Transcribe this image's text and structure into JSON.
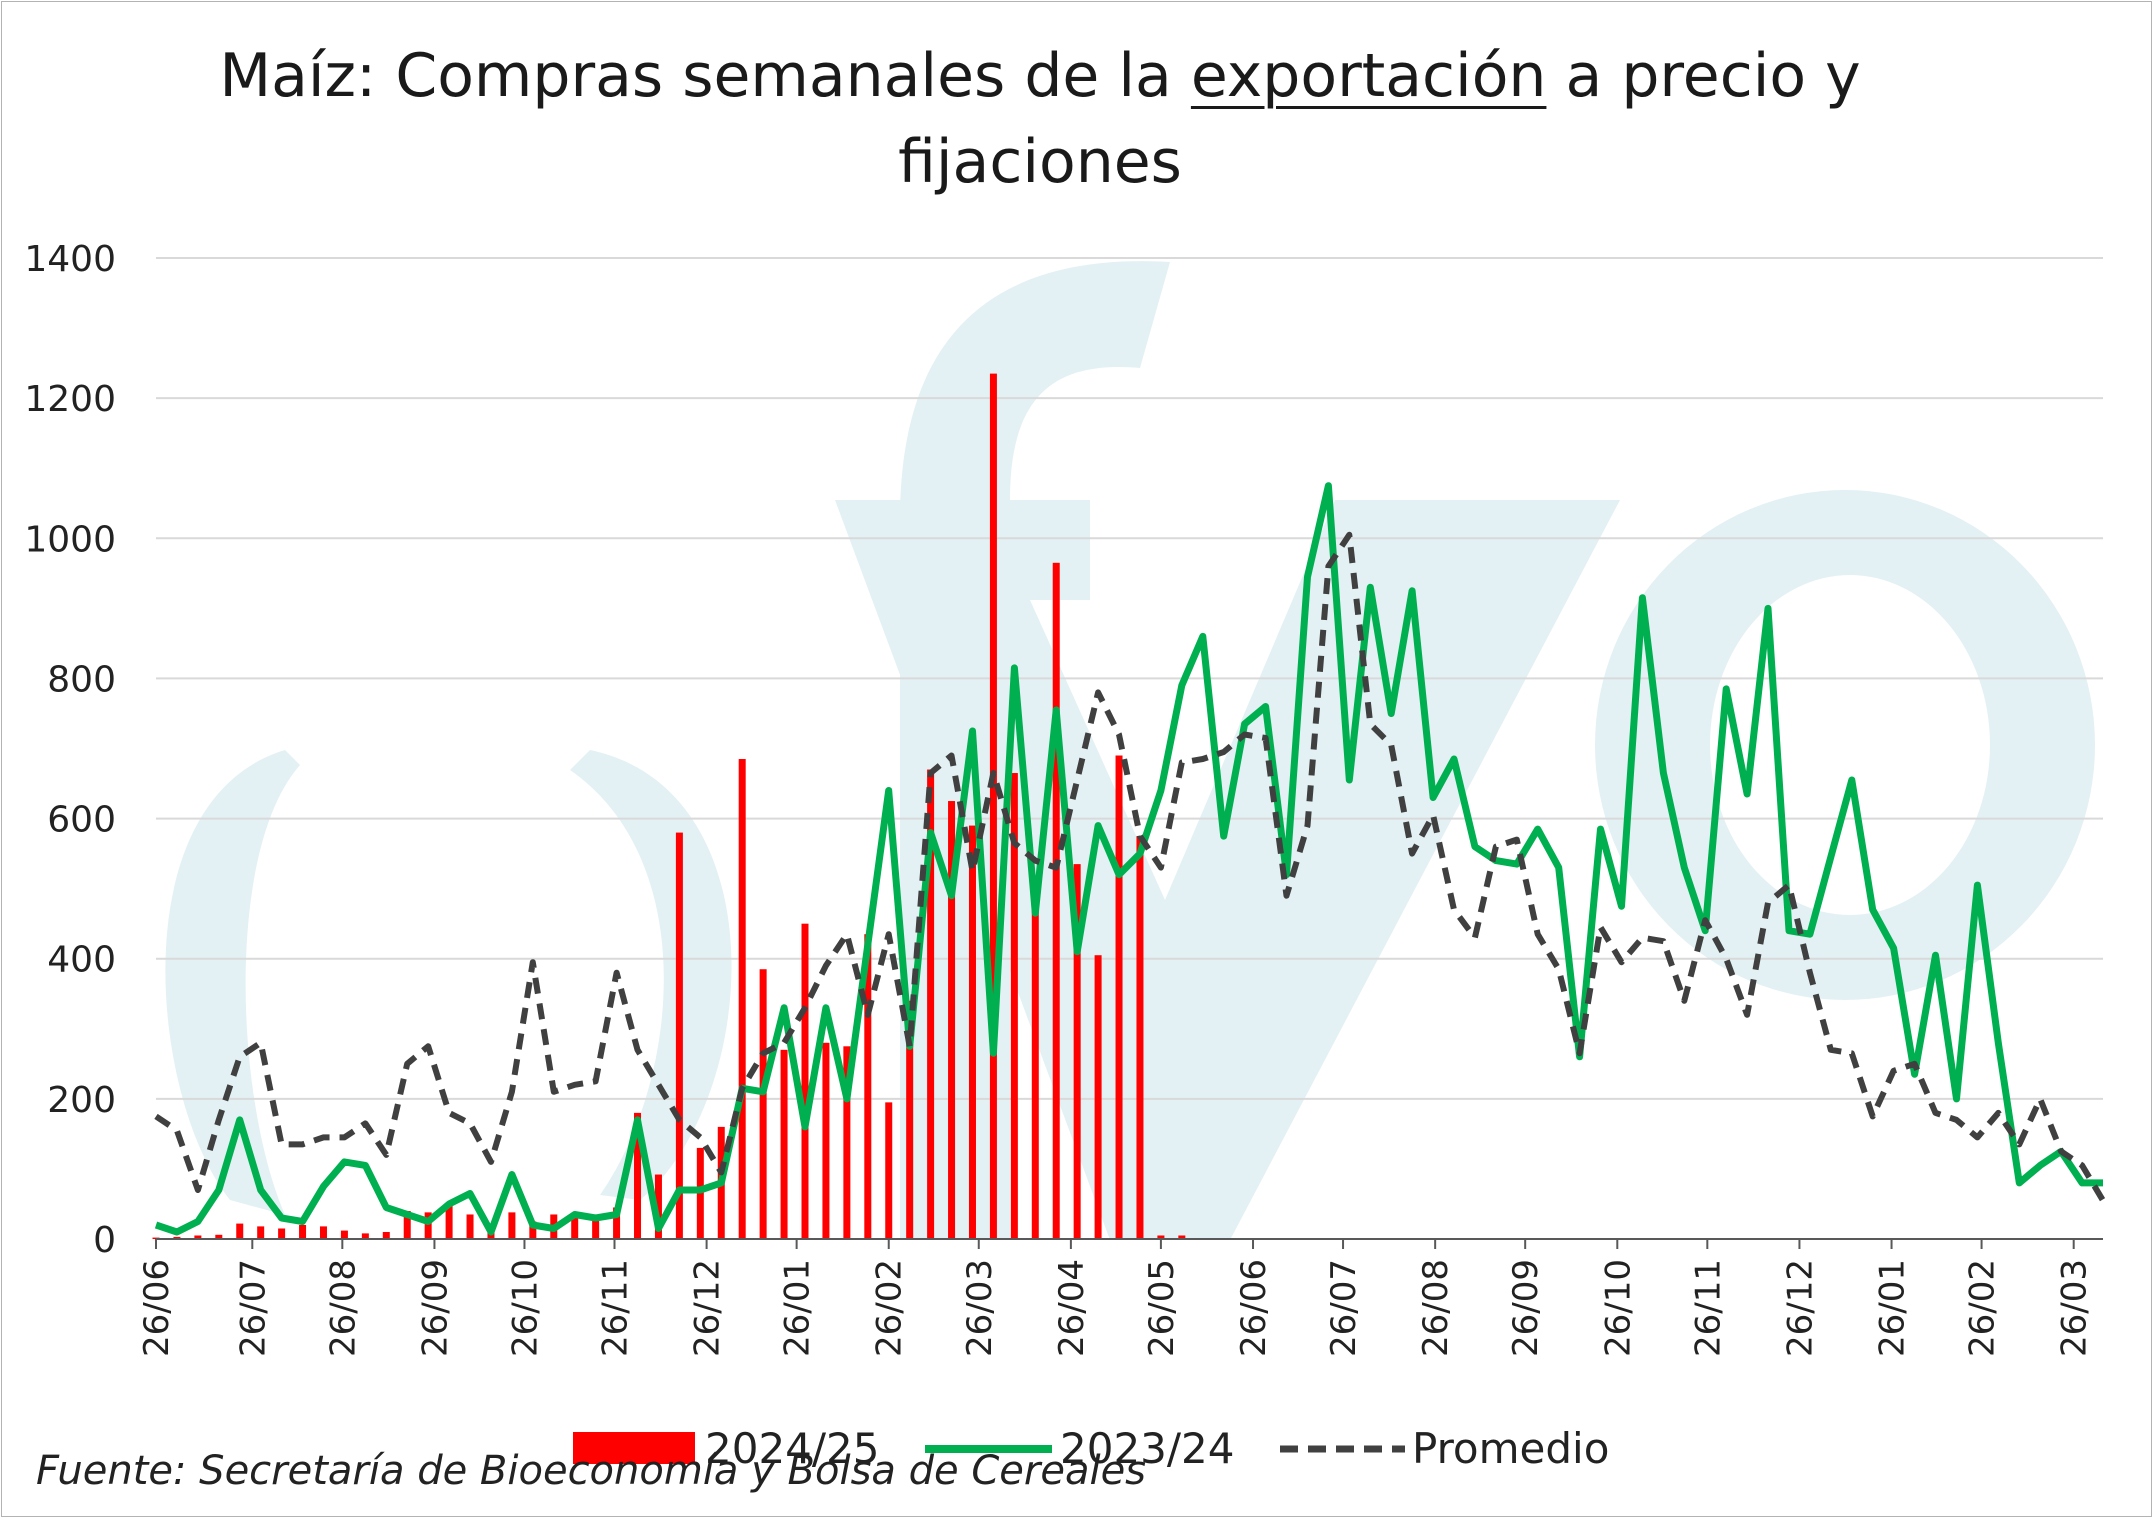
{
  "title": {
    "part1": "Maíz: Compras semanales de la ",
    "underlined": "exportación",
    "part2": " a precio y",
    "line2": "fijaciones"
  },
  "source": "Fuente: Secretaría de Bioeconomía y Bolsa de Cereales",
  "watermark": "ofyo",
  "colors": {
    "bars": "#ff0000",
    "line_2023": "#00b050",
    "line_avg": "#404040",
    "grid": "#d9d9d9",
    "watermark": "#e3f1f4"
  },
  "chart_data": {
    "type": "bar+line",
    "ylim": [
      0,
      1400
    ],
    "yticks": [
      0,
      200,
      400,
      600,
      800,
      1000,
      1200,
      1400
    ],
    "xtick_labels": [
      "26/06",
      "26/07",
      "26/08",
      "26/09",
      "26/10",
      "26/11",
      "26/12",
      "26/01",
      "26/02",
      "26/03",
      "26/04",
      "26/05",
      "26/06",
      "26/07",
      "26/08",
      "26/09",
      "26/10",
      "26/11",
      "26/12",
      "26/01",
      "26/02",
      "26/03"
    ],
    "weeks": 94,
    "legend": {
      "placement": "bottom"
    },
    "series": [
      {
        "name": "2024/25",
        "kind": "bar",
        "values": [
          2,
          3,
          5,
          6,
          22,
          18,
          15,
          20,
          18,
          12,
          8,
          10,
          40,
          38,
          50,
          35,
          20,
          38,
          25,
          35,
          30,
          30,
          45,
          180,
          92,
          580,
          130,
          160,
          685,
          385,
          270,
          450,
          280,
          275,
          435,
          195,
          340,
          670,
          625,
          590,
          1235,
          665,
          505,
          965,
          535,
          405,
          690,
          575,
          5,
          5
        ]
      },
      {
        "name": "2023/24",
        "kind": "line",
        "values": [
          20,
          10,
          25,
          70,
          170,
          70,
          30,
          25,
          75,
          110,
          105,
          45,
          35,
          25,
          50,
          65,
          10,
          92,
          20,
          15,
          35,
          30,
          35,
          170,
          15,
          70,
          70,
          80,
          215,
          210,
          330,
          160,
          330,
          200,
          420,
          640,
          275,
          580,
          490,
          725,
          265,
          815,
          465,
          755,
          410,
          590,
          520,
          550,
          640,
          790,
          860,
          575,
          735,
          760,
          520,
          945,
          1075,
          655,
          930,
          750,
          925,
          630,
          685,
          560,
          540,
          535,
          585,
          530,
          260,
          585,
          475,
          915,
          665,
          530,
          440,
          785,
          635,
          900,
          440,
          435,
          545,
          655,
          470,
          415,
          235,
          405,
          200,
          505,
          280,
          80,
          105,
          125,
          80,
          80
        ]
      },
      {
        "name": "Promedio",
        "kind": "line-dashed",
        "values": [
          175,
          155,
          70,
          170,
          260,
          280,
          135,
          135,
          145,
          145,
          165,
          120,
          250,
          275,
          180,
          165,
          110,
          210,
          395,
          210,
          220,
          225,
          380,
          270,
          220,
          170,
          145,
          95,
          215,
          265,
          280,
          330,
          390,
          435,
          320,
          435,
          275,
          665,
          690,
          525,
          665,
          565,
          540,
          530,
          655,
          780,
          720,
          575,
          530,
          680,
          685,
          695,
          720,
          715,
          490,
          590,
          960,
          1005,
          735,
          705,
          550,
          605,
          470,
          430,
          560,
          570,
          435,
          385,
          265,
          445,
          395,
          430,
          425,
          340,
          455,
          400,
          320,
          480,
          505,
          380,
          270,
          265,
          175,
          240,
          250,
          180,
          170,
          145,
          180,
          135,
          200,
          125,
          105,
          55
        ]
      }
    ]
  }
}
